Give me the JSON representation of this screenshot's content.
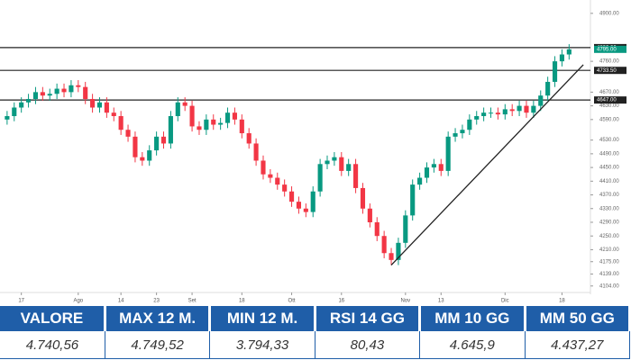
{
  "chart_data": {
    "type": "candlestick",
    "up_color": "#089981",
    "down_color": "#f23645",
    "open": [
      4590,
      4600,
      4625,
      4640,
      4650,
      4670,
      4660,
      4665,
      4680,
      4670,
      4690,
      4685,
      4650,
      4625,
      4640,
      4610,
      4600,
      4560,
      4540,
      4480,
      4470,
      4500,
      4540,
      4520,
      4600,
      4640,
      4630,
      4570,
      4560,
      4590,
      4575,
      4580,
      4610,
      4590,
      4550,
      4520,
      4470,
      4430,
      4420,
      4400,
      4380,
      4350,
      4330,
      4320,
      4380,
      4460,
      4470,
      4480,
      4440,
      4460,
      4390,
      4330,
      4290,
      4250,
      4200,
      4180,
      4230,
      4310,
      4400,
      4420,
      4450,
      4460,
      4440,
      4540,
      4550,
      4560,
      4590,
      4600,
      4610,
      4610,
      4605,
      4620,
      4615,
      4630,
      4610,
      4630,
      4660,
      4700,
      4760,
      4780
    ],
    "high": [
      4615,
      4640,
      4655,
      4665,
      4685,
      4685,
      4680,
      4695,
      4695,
      4705,
      4705,
      4700,
      4665,
      4655,
      4655,
      4625,
      4615,
      4575,
      4555,
      4495,
      4515,
      4555,
      4555,
      4615,
      4655,
      4655,
      4645,
      4585,
      4605,
      4605,
      4595,
      4625,
      4625,
      4605,
      4565,
      4535,
      4485,
      4445,
      4435,
      4415,
      4395,
      4365,
      4345,
      4395,
      4475,
      4485,
      4495,
      4495,
      4475,
      4475,
      4405,
      4345,
      4305,
      4265,
      4215,
      4245,
      4325,
      4415,
      4435,
      4465,
      4475,
      4475,
      4555,
      4565,
      4575,
      4605,
      4615,
      4625,
      4625,
      4625,
      4635,
      4635,
      4645,
      4645,
      4645,
      4675,
      4715,
      4775,
      4795,
      4810
    ],
    "low": [
      4575,
      4585,
      4610,
      4625,
      4635,
      4645,
      4645,
      4650,
      4655,
      4655,
      4670,
      4635,
      4610,
      4610,
      4595,
      4585,
      4545,
      4525,
      4465,
      4455,
      4455,
      4485,
      4505,
      4505,
      4585,
      4615,
      4555,
      4545,
      4545,
      4560,
      4560,
      4565,
      4575,
      4535,
      4505,
      4455,
      4415,
      4405,
      4385,
      4365,
      4335,
      4315,
      4305,
      4305,
      4365,
      4445,
      4455,
      4425,
      4425,
      4375,
      4315,
      4275,
      4235,
      4185,
      4165,
      4165,
      4215,
      4295,
      4385,
      4405,
      4435,
      4425,
      4425,
      4525,
      4535,
      4545,
      4575,
      4585,
      4595,
      4590,
      4590,
      4600,
      4600,
      4595,
      4595,
      4615,
      4645,
      4685,
      4745,
      4765
    ],
    "close": [
      4600,
      4625,
      4640,
      4650,
      4670,
      4660,
      4665,
      4680,
      4670,
      4690,
      4685,
      4650,
      4625,
      4640,
      4610,
      4600,
      4560,
      4540,
      4480,
      4470,
      4500,
      4540,
      4520,
      4600,
      4640,
      4630,
      4570,
      4560,
      4590,
      4575,
      4580,
      4610,
      4590,
      4550,
      4520,
      4470,
      4430,
      4420,
      4400,
      4380,
      4350,
      4330,
      4320,
      4380,
      4460,
      4470,
      4480,
      4440,
      4460,
      4390,
      4330,
      4290,
      4250,
      4200,
      4180,
      4230,
      4310,
      4400,
      4420,
      4450,
      4460,
      4440,
      4540,
      4550,
      4560,
      4590,
      4600,
      4610,
      4610,
      4605,
      4620,
      4615,
      4630,
      4610,
      4630,
      4660,
      4700,
      4760,
      4780,
      4795
    ],
    "xlim": [
      -1,
      82
    ],
    "ylim": [
      4085,
      4939
    ],
    "xticks": [
      {
        "value": 2,
        "label": "17"
      },
      {
        "value": 10,
        "label": "Ago"
      },
      {
        "value": 16,
        "label": "14"
      },
      {
        "value": 21,
        "label": "23"
      },
      {
        "value": 26,
        "label": "Set"
      },
      {
        "value": 33,
        "label": "18"
      },
      {
        "value": 40,
        "label": "Ott"
      },
      {
        "value": 47,
        "label": "16"
      },
      {
        "value": 56,
        "label": "Nov"
      },
      {
        "value": 61,
        "label": "13"
      },
      {
        "value": 70,
        "label": "Dic"
      },
      {
        "value": 78,
        "label": "18"
      }
    ],
    "yticks": [
      {
        "value": 4900,
        "label": "4900.00"
      },
      {
        "value": 4760,
        "label": "4760.00"
      },
      {
        "value": 4670,
        "label": "4670.00"
      },
      {
        "value": 4630,
        "label": "4630.00"
      },
      {
        "value": 4590,
        "label": "4590.00"
      },
      {
        "value": 4530,
        "label": "4530.00"
      },
      {
        "value": 4490,
        "label": "4490.00"
      },
      {
        "value": 4450,
        "label": "4450.00"
      },
      {
        "value": 4410,
        "label": "4410.00"
      },
      {
        "value": 4370,
        "label": "4370.00"
      },
      {
        "value": 4330,
        "label": "4330.00"
      },
      {
        "value": 4290,
        "label": "4290.00"
      },
      {
        "value": 4250,
        "label": "4250.00"
      },
      {
        "value": 4210,
        "label": "4210.00"
      },
      {
        "value": 4175,
        "label": "4175.00"
      },
      {
        "value": 4139,
        "label": "4139.00"
      },
      {
        "value": 4104,
        "label": "4104.00"
      }
    ],
    "hlines": [
      {
        "value": 4800,
        "label": "4800.00"
      },
      {
        "value": 4733.5,
        "label": "4733.50"
      },
      {
        "value": 4647,
        "label": "4647.00"
      }
    ],
    "last_price": {
      "value": 4795,
      "label": "4795.00"
    },
    "trendline": {
      "x": [
        54,
        81
      ],
      "y": [
        4165,
        4750
      ]
    }
  },
  "table": {
    "headers": [
      "VALORE",
      "MAX 12 M.",
      "MIN 12 M.",
      "RSI 14 GG",
      "MM 10 GG",
      "MM 50 GG"
    ],
    "values": [
      "4.740,56",
      "4.749,52",
      "3.794,33",
      "80,43",
      "4.645,9",
      "4.437,27"
    ]
  }
}
